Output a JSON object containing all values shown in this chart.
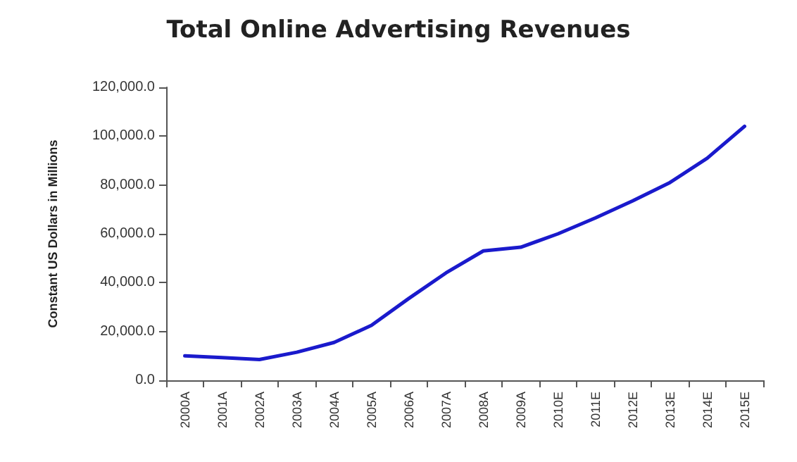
{
  "chart_data": {
    "type": "line",
    "title": "Total Online Advertising Revenues",
    "ylabel": "Constant US Dollars in Millions",
    "categories": [
      "2000A",
      "2001A",
      "2002A",
      "2003A",
      "2004A",
      "2005A",
      "2006A",
      "2007A",
      "2008A",
      "2009A",
      "2010E",
      "2011E",
      "2012E",
      "2013E",
      "2014E",
      "2015E"
    ],
    "series": [
      {
        "color": "#1a1acc",
        "values": [
          10000,
          9300,
          8500,
          11500,
          15500,
          22500,
          33500,
          44000,
          53000,
          54500,
          60000,
          66500,
          73500,
          81000,
          91000,
          104000
        ]
      }
    ],
    "ylim": [
      0,
      120000
    ],
    "yticks": [
      {
        "value": 0,
        "label": "0.0"
      },
      {
        "value": 20000,
        "label": "20,000.0"
      },
      {
        "value": 40000,
        "label": "40,000.0"
      },
      {
        "value": 60000,
        "label": "60,000.0"
      },
      {
        "value": 80000,
        "label": "80,000.0"
      },
      {
        "value": 100000,
        "label": "100,000.0"
      },
      {
        "value": 120000,
        "label": "120,000.0"
      }
    ],
    "grid": false,
    "marker": "none",
    "line_style": "solid"
  }
}
